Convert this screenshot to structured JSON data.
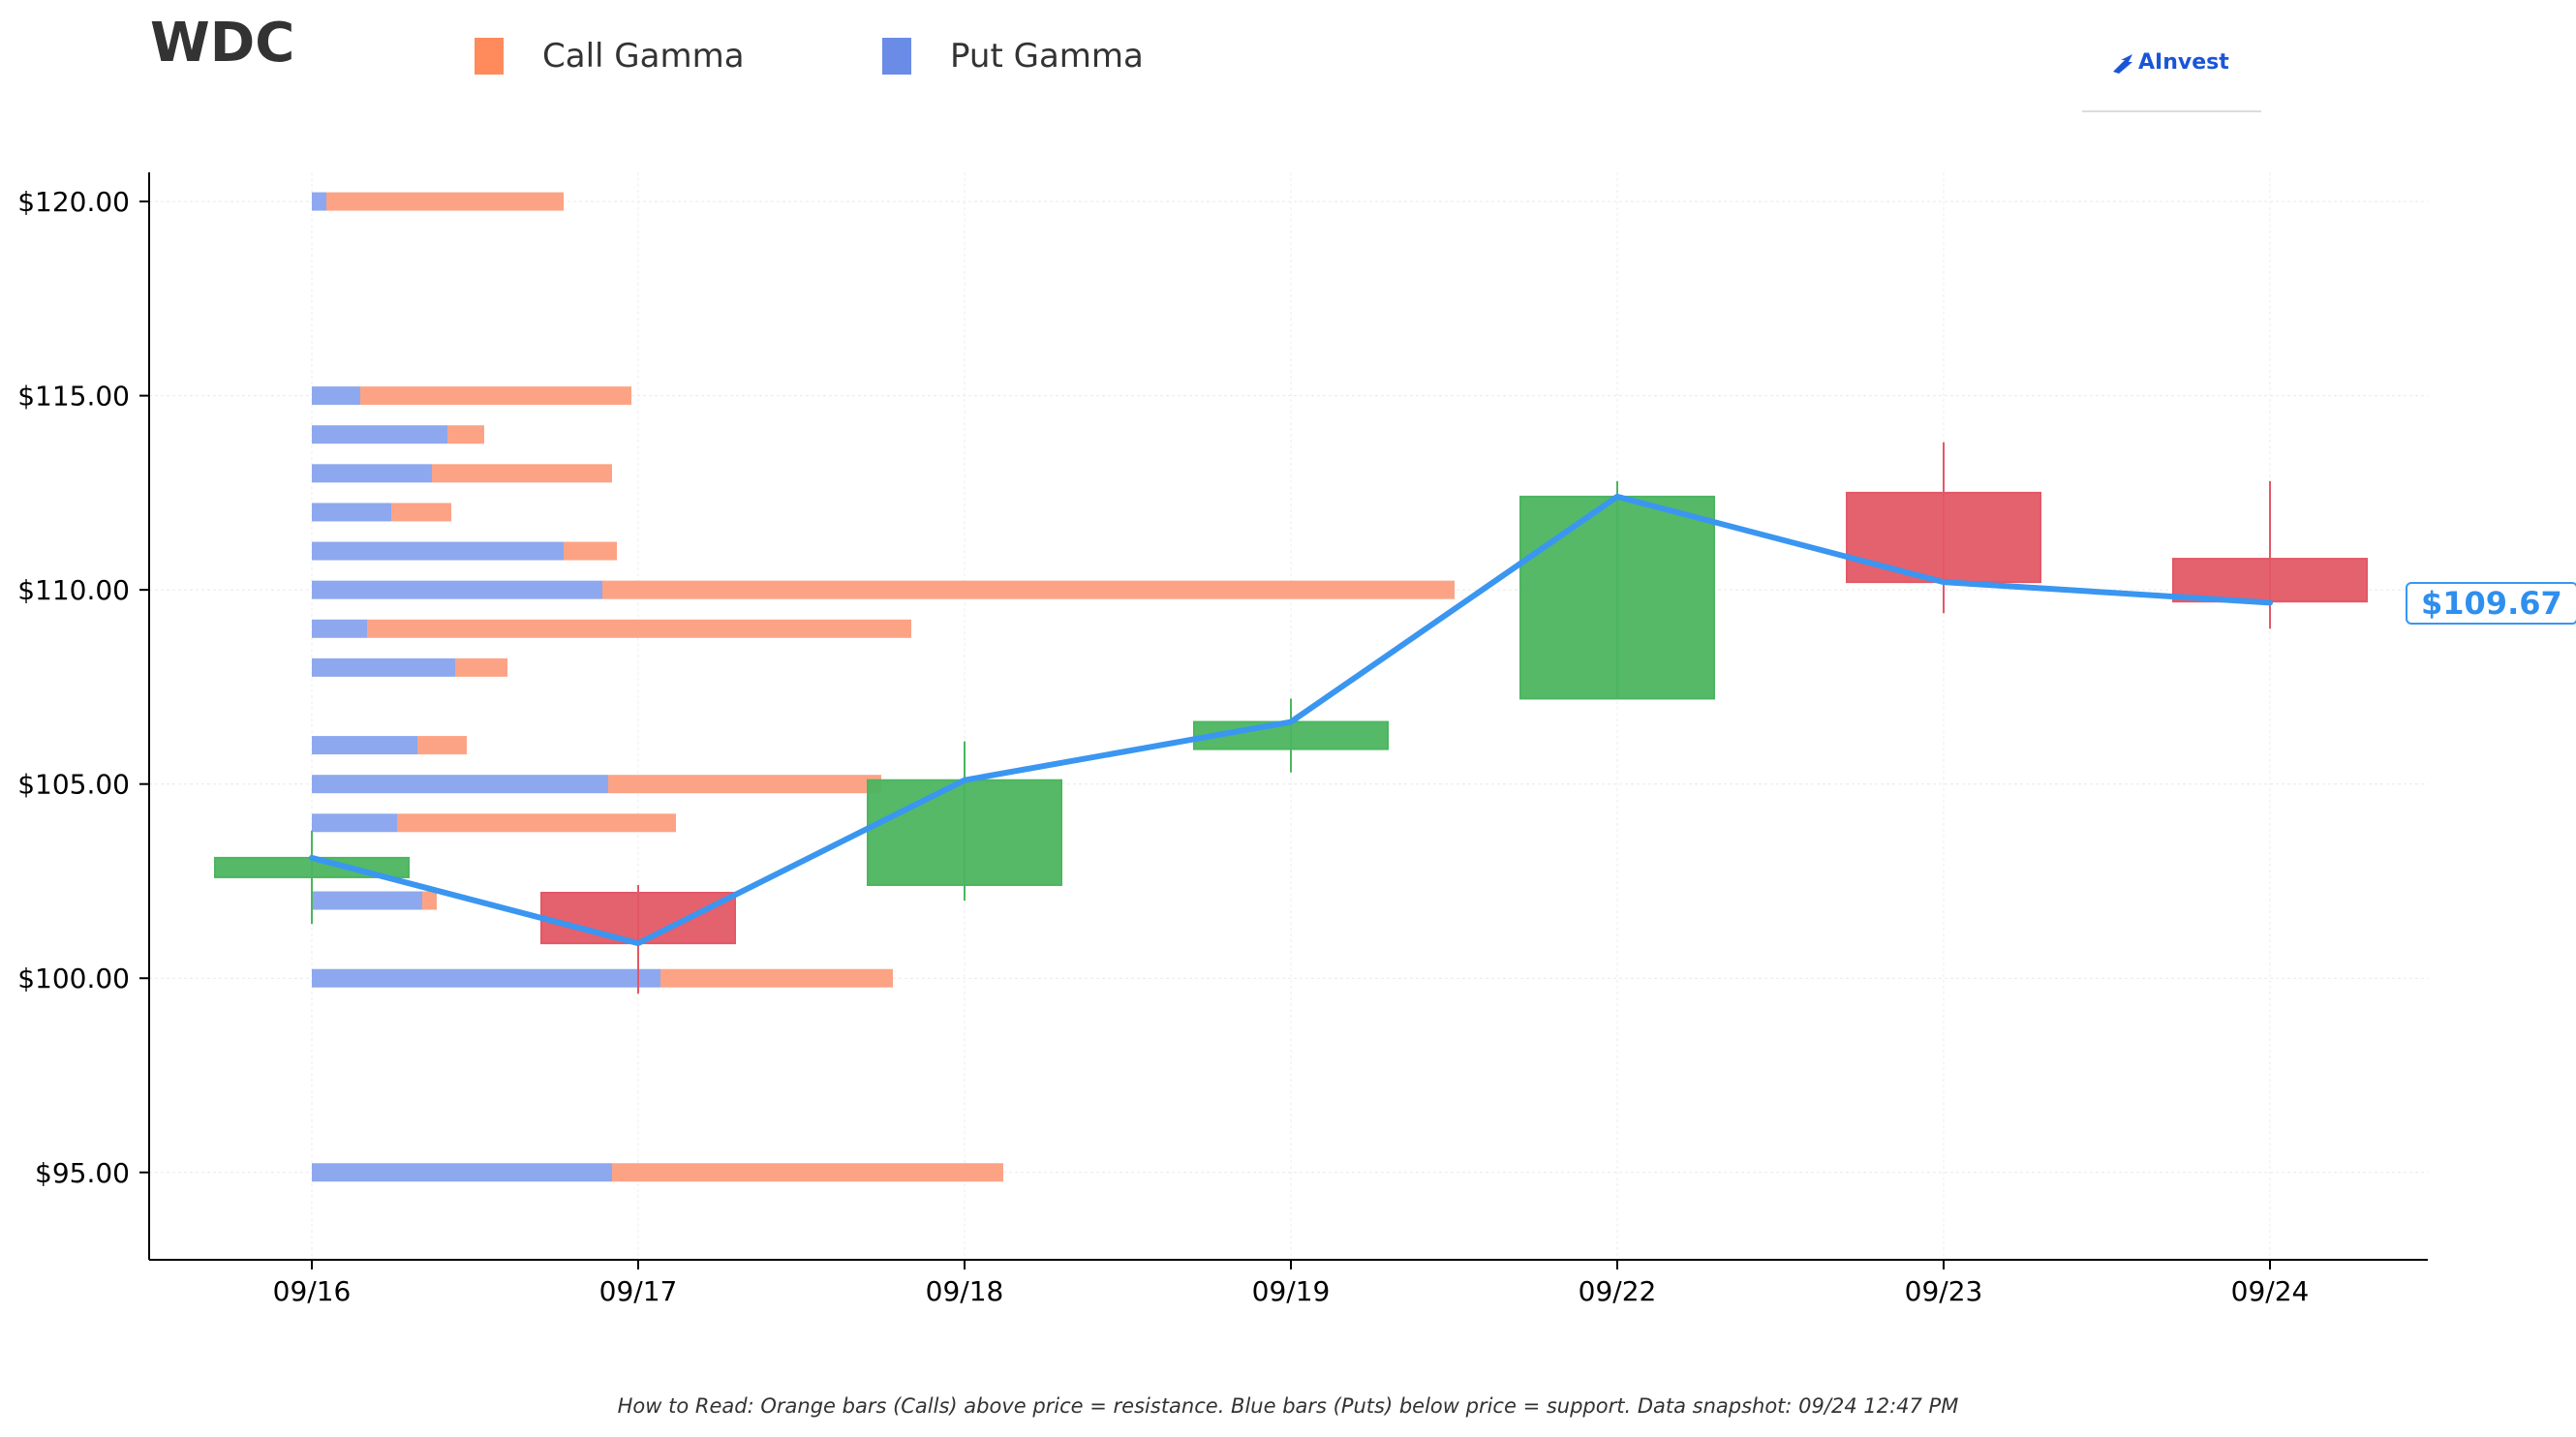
{
  "title": "WDC",
  "legend": [
    {
      "label": "Call Gamma",
      "color": "#ff8a5c"
    },
    {
      "label": "Put Gamma",
      "color": "#6a8ce6"
    }
  ],
  "brand": {
    "name": "AInvest"
  },
  "current_price_label": "$109.67",
  "footnote": "How to Read: Orange bars (Calls) above price = resistance. Blue bars (Puts) below price = support. Data snapshot: 09/24 12:47 PM",
  "colors": {
    "call": "#fca385",
    "put": "#8da8ee",
    "up": "#4cb560",
    "down": "#e35866",
    "price_line": "#3a96f0"
  },
  "chart_data": {
    "type": "candlestick+bar",
    "x_categories": [
      "09/16",
      "09/17",
      "09/18",
      "09/19",
      "09/22",
      "09/23",
      "09/24"
    ],
    "y_ticks": [
      {
        "value": 95,
        "label": "$95.00"
      },
      {
        "value": 100,
        "label": "$100.00"
      },
      {
        "value": 105,
        "label": "$105.00"
      },
      {
        "value": 110,
        "label": "$110.00"
      },
      {
        "value": 115,
        "label": "$115.00"
      },
      {
        "value": 120,
        "label": "$120.00"
      }
    ],
    "ylim": [
      92.75,
      120.75
    ],
    "grid": true,
    "legend_position": "top-left",
    "candles": [
      {
        "date": "09/16",
        "open": 102.6,
        "close": 103.1,
        "high": 103.8,
        "low": 101.4
      },
      {
        "date": "09/17",
        "open": 102.2,
        "close": 100.9,
        "high": 102.4,
        "low": 99.6
      },
      {
        "date": "09/18",
        "open": 102.4,
        "close": 105.1,
        "high": 106.1,
        "low": 102.0
      },
      {
        "date": "09/19",
        "open": 105.9,
        "close": 106.6,
        "high": 107.2,
        "low": 105.3
      },
      {
        "date": "09/22",
        "open": 107.2,
        "close": 112.4,
        "high": 112.8,
        "low": 107.2
      },
      {
        "date": "09/23",
        "open": 112.5,
        "close": 110.2,
        "high": 113.8,
        "low": 109.4
      },
      {
        "date": "09/24",
        "open": 110.8,
        "close": 109.7,
        "high": 112.8,
        "low": 109.0
      }
    ],
    "price_line": [
      103.1,
      100.9,
      105.1,
      106.6,
      112.4,
      110.2,
      109.67
    ],
    "gamma_bars": [
      {
        "strike": 120,
        "put": 0.15,
        "call": 2.45
      },
      {
        "strike": 115,
        "put": 0.5,
        "call": 2.8
      },
      {
        "strike": 114,
        "put": 1.4,
        "call": 0.38
      },
      {
        "strike": 113,
        "put": 1.24,
        "call": 1.86
      },
      {
        "strike": 112,
        "put": 0.82,
        "call": 0.62
      },
      {
        "strike": 111,
        "put": 2.6,
        "call": 0.55
      },
      {
        "strike": 110,
        "put": 3.0,
        "call": 8.8
      },
      {
        "strike": 109,
        "put": 0.57,
        "call": 5.62
      },
      {
        "strike": 108,
        "put": 1.48,
        "call": 0.54
      },
      {
        "strike": 106,
        "put": 1.09,
        "call": 0.51
      },
      {
        "strike": 105,
        "put": 3.06,
        "call": 2.82
      },
      {
        "strike": 104,
        "put": 0.88,
        "call": 2.88
      },
      {
        "strike": 102,
        "put": 1.14,
        "call": 0.15
      },
      {
        "strike": 100,
        "put": 3.6,
        "call": 2.4
      },
      {
        "strike": 95,
        "put": 3.1,
        "call": 4.04
      }
    ]
  }
}
